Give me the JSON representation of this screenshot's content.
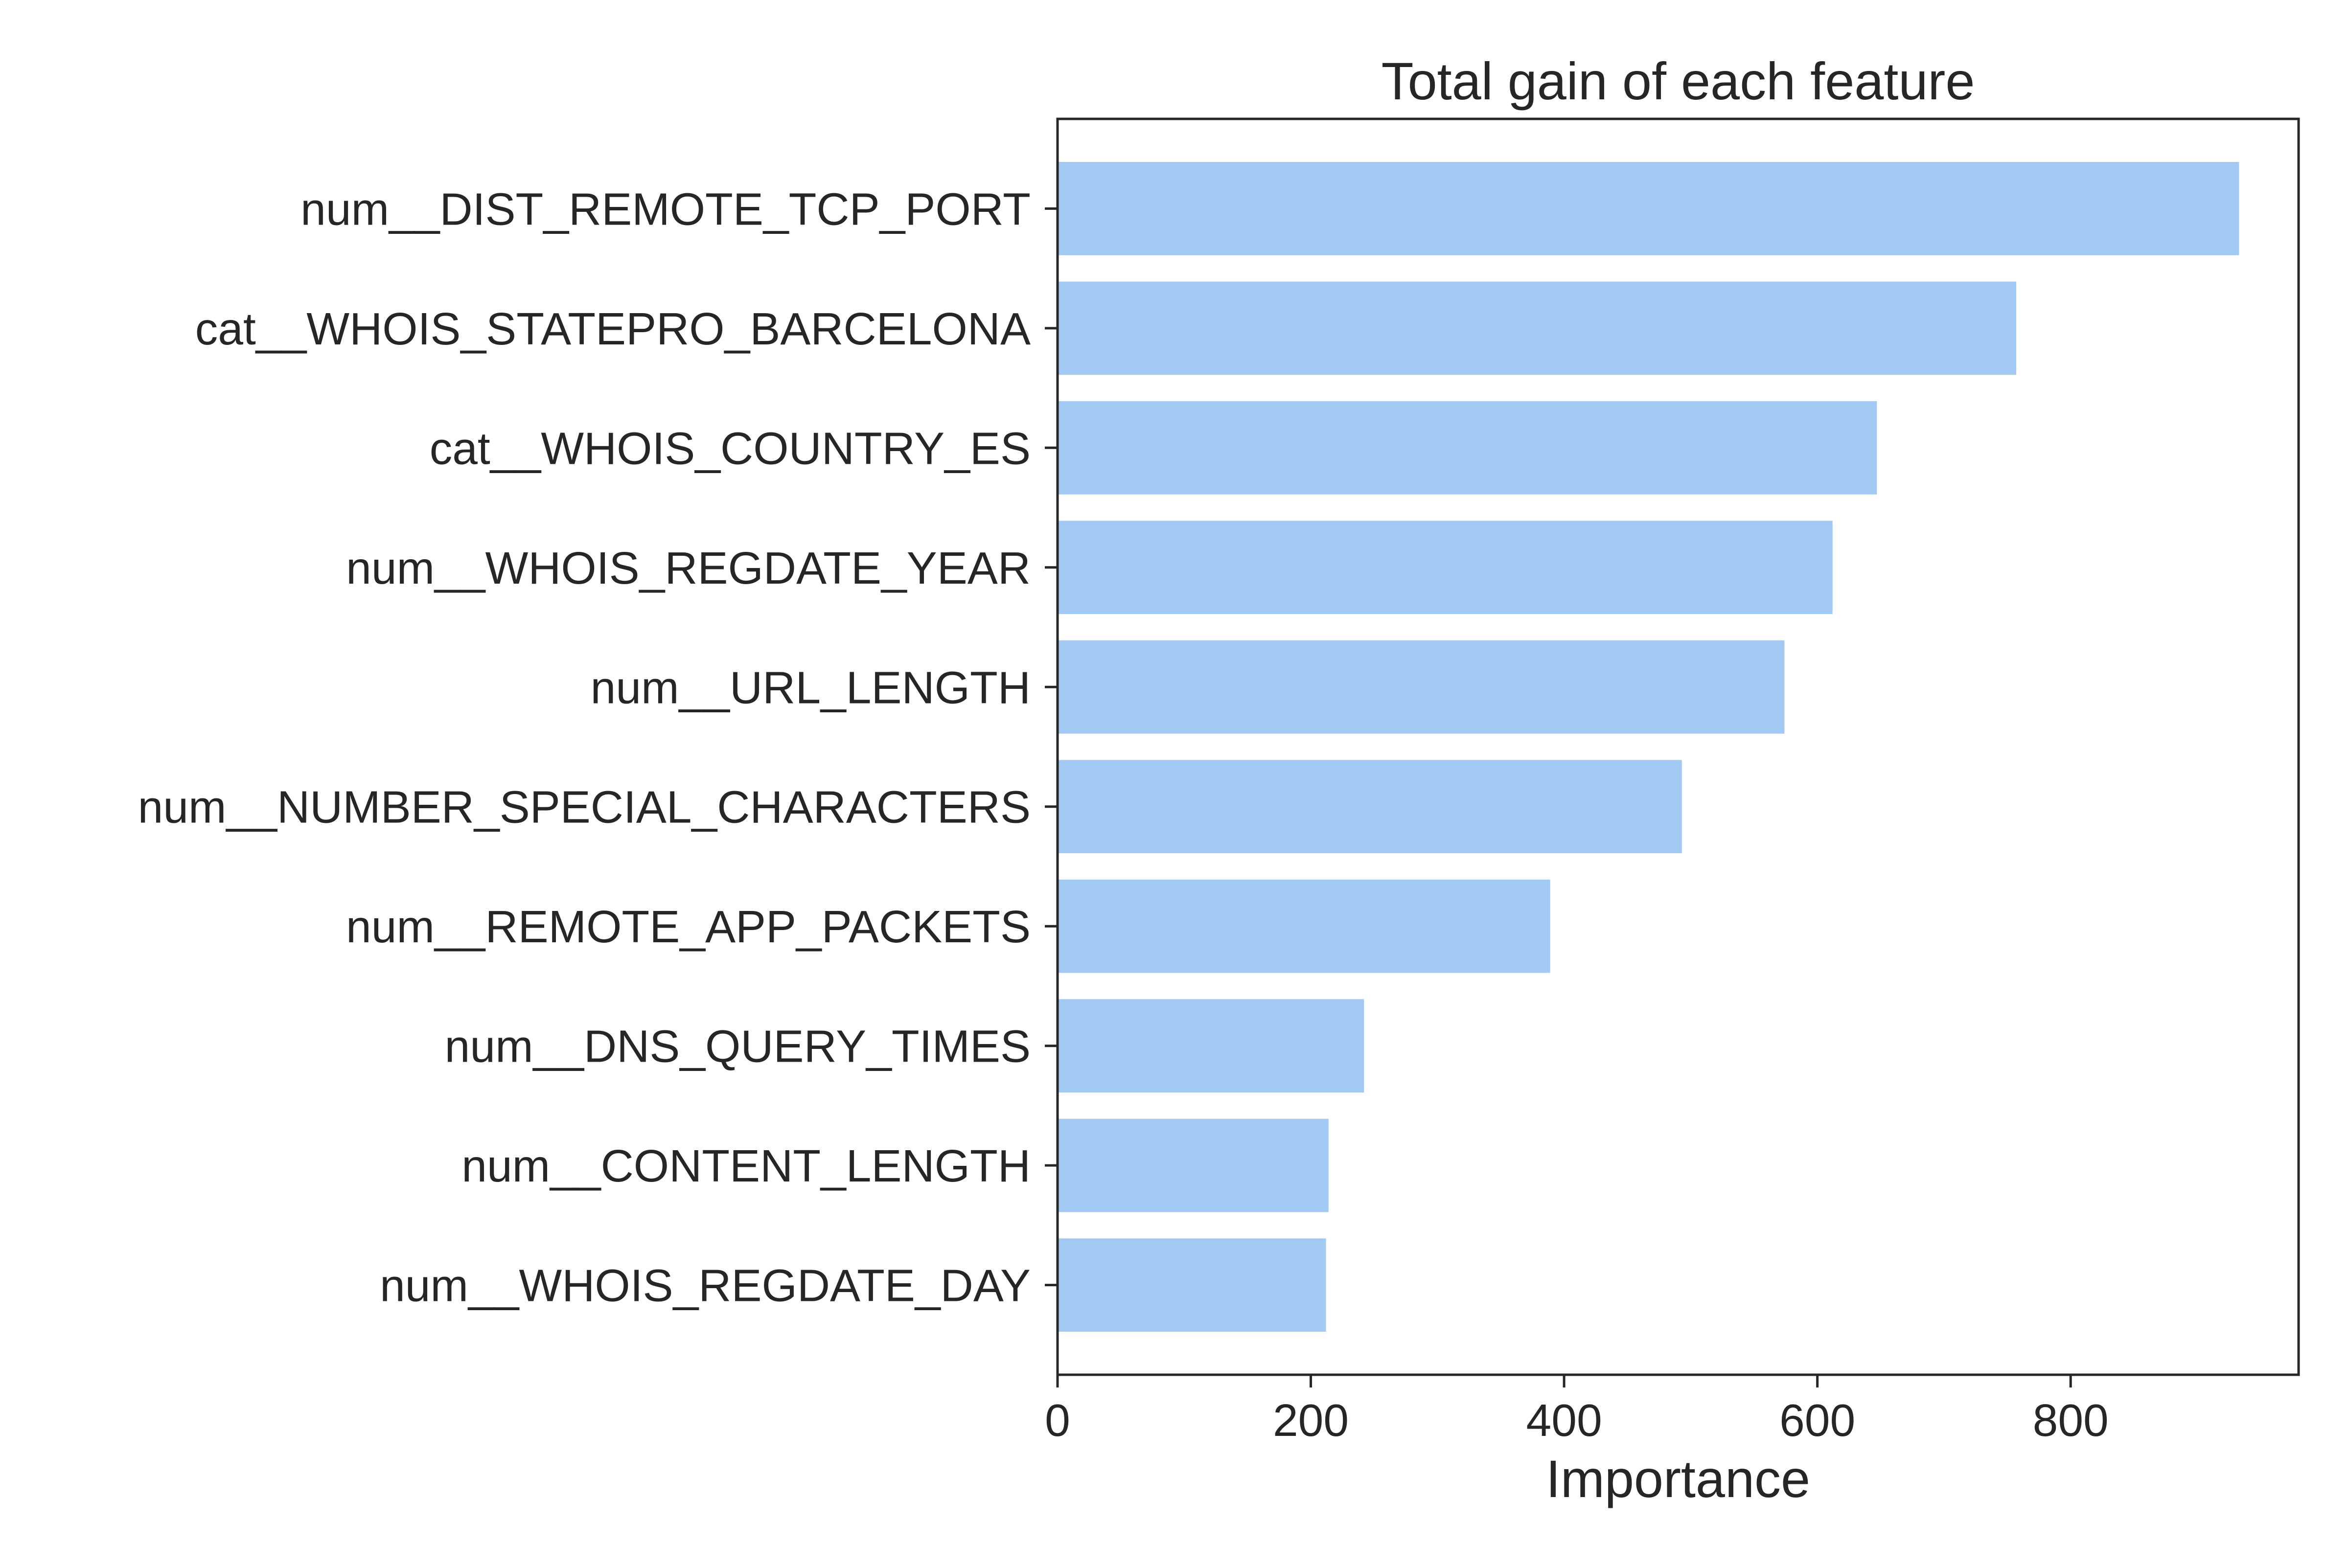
{
  "chart_data": {
    "type": "bar",
    "orientation": "horizontal",
    "title": "Total gain of each feature",
    "xlabel": "Importance",
    "ylabel": "",
    "categories": [
      "num__DIST_REMOTE_TCP_PORT",
      "cat__WHOIS_STATEPRO_BARCELONA",
      "cat__WHOIS_COUNTRY_ES",
      "num__WHOIS_REGDATE_YEAR",
      "num__URL_LENGTH",
      "num__NUMBER_SPECIAL_CHARACTERS",
      "num__REMOTE_APP_PACKETS",
      "num__DNS_QUERY_TIMES",
      "num__CONTENT_LENGTH",
      "num__WHOIS_REGDATE_DAY"
    ],
    "values": [
      933,
      757,
      647,
      612,
      574,
      493,
      389,
      242,
      214,
      212
    ],
    "xlim": [
      0,
      980
    ],
    "xticks": [
      0,
      200,
      400,
      600,
      800
    ],
    "xtick_labels": [
      "0",
      "200",
      "400",
      "600",
      "800"
    ],
    "grid": false,
    "colors": {
      "bar": "#a1c9f4",
      "axis": "#262626"
    }
  }
}
